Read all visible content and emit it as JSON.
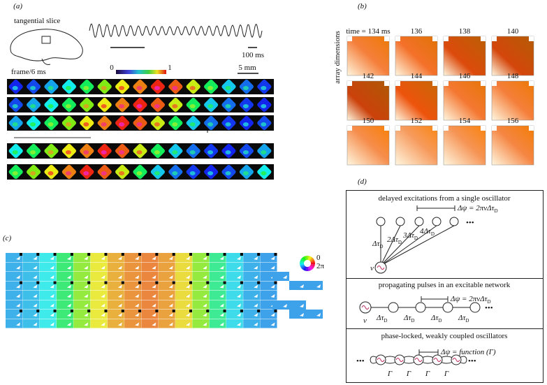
{
  "panels": {
    "a": {
      "label": "(a)",
      "slice_label": "tangential slice",
      "time_scale": "100 ms",
      "frame_label": "frame/6 ms",
      "colorbar_min": "0",
      "colorbar_max": "1",
      "space_scale": "5 mm"
    },
    "b": {
      "label": "(b)",
      "axis_label": "array dimensions",
      "frame_times": [
        "time = 134 ms",
        "136",
        "138",
        "140",
        "142",
        "144",
        "146",
        "148",
        "150",
        "152",
        "154",
        "156"
      ]
    },
    "c": {
      "label": "(c)",
      "phase_min": "0",
      "phase_max": "2π"
    },
    "d": {
      "label": "(d)",
      "sections": [
        {
          "title": "delayed excitations from a single oscillator",
          "equation": {
            "text": "Δψ = 2πνΔτ",
            "sub": "D"
          },
          "source": "ν",
          "delays": [
            {
              "text": "Δτ",
              "sub": "D"
            },
            {
              "text": "2Δτ",
              "sub": "D"
            },
            {
              "text": "3Δτ",
              "sub": "D"
            },
            {
              "text": "4Δτ",
              "sub": "D"
            }
          ],
          "more": "•••"
        },
        {
          "title": "propagating pulses in an excitable network",
          "equation": {
            "text": "Δψ = 2πνΔτ",
            "sub": "D"
          },
          "source": "ν",
          "delays": [
            {
              "text": "Δτ",
              "sub": "D"
            },
            {
              "text": "Δτ",
              "sub": "D"
            },
            {
              "text": "Δτ",
              "sub": "D"
            },
            {
              "text": "Δτ",
              "sub": "D"
            }
          ],
          "more": "•••"
        },
        {
          "title": "phase-locked, weakly coupled oscillators",
          "equation": {
            "text": "Δψ = function (Γ)"
          },
          "couplings": [
            "Γ",
            "Γ",
            "Γ",
            "Γ"
          ],
          "more": "•••"
        }
      ]
    }
  }
}
